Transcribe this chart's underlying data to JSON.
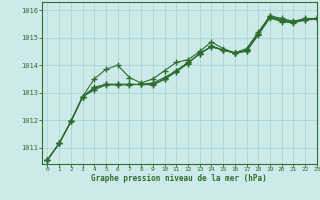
{
  "title": "Graphe pression niveau de la mer (hPa)",
  "background_color": "#cdeaea",
  "grid_color": "#b0d8d8",
  "line_color": "#2d6e2d",
  "text_color": "#2d6e2d",
  "xlim": [
    -0.5,
    23
  ],
  "ylim": [
    1010.4,
    1016.3
  ],
  "yticks": [
    1011,
    1012,
    1013,
    1014,
    1015,
    1016
  ],
  "xticks": [
    0,
    1,
    2,
    3,
    4,
    5,
    6,
    7,
    8,
    9,
    10,
    11,
    12,
    13,
    14,
    15,
    16,
    17,
    18,
    19,
    20,
    21,
    22,
    23
  ],
  "series": [
    [
      1010.55,
      1011.15,
      1011.95,
      1012.85,
      1013.5,
      1013.85,
      1014.0,
      1013.55,
      1013.35,
      1013.5,
      1013.8,
      1014.1,
      1014.2,
      1014.5,
      1014.85,
      1014.6,
      1014.45,
      1014.6,
      1015.2,
      1015.8,
      1015.7,
      1015.6,
      1015.7,
      1015.7
    ],
    [
      1010.55,
      1011.15,
      1011.95,
      1012.85,
      1013.2,
      1013.3,
      1013.3,
      1013.3,
      1013.3,
      1013.35,
      1013.55,
      1013.8,
      1014.1,
      1014.4,
      1014.7,
      1014.55,
      1014.45,
      1014.55,
      1015.15,
      1015.78,
      1015.65,
      1015.58,
      1015.68,
      1015.7
    ],
    [
      1010.55,
      1011.15,
      1011.95,
      1012.85,
      1013.15,
      1013.3,
      1013.3,
      1013.3,
      1013.3,
      1013.3,
      1013.5,
      1013.78,
      1014.08,
      1014.42,
      1014.68,
      1014.55,
      1014.45,
      1014.52,
      1015.12,
      1015.76,
      1015.62,
      1015.56,
      1015.66,
      1015.7
    ],
    [
      1010.55,
      1011.15,
      1011.95,
      1012.85,
      1013.1,
      1013.28,
      1013.28,
      1013.28,
      1013.3,
      1013.28,
      1013.48,
      1013.76,
      1014.06,
      1014.44,
      1014.66,
      1014.55,
      1014.44,
      1014.5,
      1015.1,
      1015.72,
      1015.58,
      1015.54,
      1015.64,
      1015.68
    ]
  ],
  "marker": "+",
  "marker_size": 4,
  "marker_lw": 1.0
}
